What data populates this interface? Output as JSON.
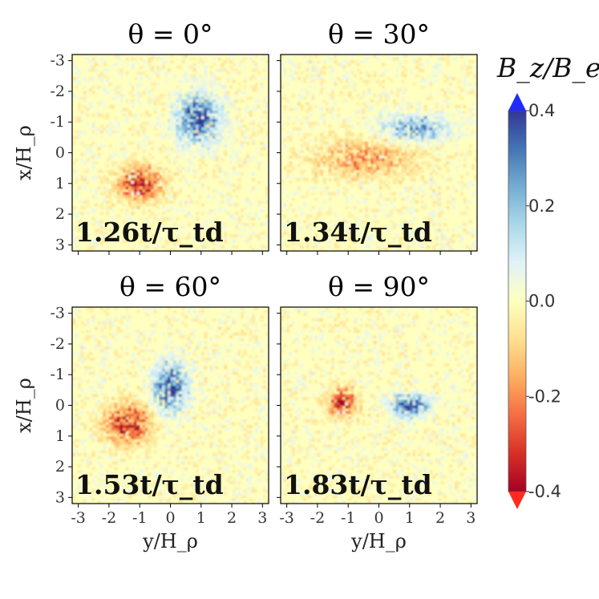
{
  "chart_data": {
    "type": "heatmap",
    "colormap": "RdYlBu",
    "colorbar": {
      "label": "B_z/B_eq",
      "vmin": -0.4,
      "vmax": 0.4,
      "ticks": [
        "0.4",
        "0.2",
        "0.0",
        "-0.2",
        "-0.4"
      ],
      "tick_values": [
        0.4,
        0.2,
        0.0,
        -0.2,
        -0.4
      ],
      "extend": "both"
    },
    "x_axis": {
      "label": "y/H_ρ",
      "range": [
        -3.2,
        3.2
      ],
      "ticks": [
        "-3",
        "-2",
        "-1",
        "0",
        "1",
        "2",
        "3"
      ],
      "tick_values": [
        -3,
        -2,
        -1,
        0,
        1,
        2,
        3
      ]
    },
    "y_axis": {
      "label": "x/H_ρ",
      "range": [
        -3.2,
        3.2
      ],
      "inverted": true,
      "ticks": [
        "-3",
        "-2",
        "-1",
        "0",
        "1",
        "2",
        "3"
      ],
      "tick_values": [
        -3,
        -2,
        -1,
        0,
        1,
        2,
        3
      ]
    },
    "panels": [
      {
        "title": "θ = 0°",
        "theta": 0,
        "time_label": "1.26t/τ_td",
        "time": 1.26,
        "features": [
          {
            "sign": "positive",
            "center": [
              0.9,
              -1.1
            ],
            "extent": [
              0.8,
              0.9
            ],
            "peak": 0.4
          },
          {
            "sign": "negative",
            "center": [
              -1.0,
              1.0
            ],
            "extent": [
              0.8,
              0.6
            ],
            "peak": -0.4
          }
        ]
      },
      {
        "title": "θ = 30°",
        "theta": 30,
        "time_label": "1.34t/τ_td",
        "time": 1.34,
        "features": [
          {
            "sign": "positive",
            "center": [
              1.2,
              -0.8
            ],
            "extent": [
              1.3,
              0.5
            ],
            "peak": 0.25
          },
          {
            "sign": "negative",
            "center": [
              -0.5,
              0.2
            ],
            "extent": [
              1.8,
              0.7
            ],
            "peak": -0.2
          }
        ]
      },
      {
        "title": "θ = 60°",
        "theta": 60,
        "time_label": "1.53t/τ_td",
        "time": 1.53,
        "features": [
          {
            "sign": "positive",
            "center": [
              0.0,
              -0.6
            ],
            "extent": [
              0.6,
              0.9
            ],
            "peak": 0.4
          },
          {
            "sign": "negative",
            "center": [
              -1.4,
              0.6
            ],
            "extent": [
              0.8,
              0.7
            ],
            "peak": -0.4
          }
        ]
      },
      {
        "title": "θ = 90°",
        "theta": 90,
        "time_label": "1.83t/τ_td",
        "time": 1.83,
        "features": [
          {
            "sign": "positive",
            "center": [
              1.0,
              0.0
            ],
            "extent": [
              0.7,
              0.4
            ],
            "peak": 0.4
          },
          {
            "sign": "negative",
            "center": [
              -1.2,
              -0.1
            ],
            "extent": [
              0.5,
              0.5
            ],
            "peak": -0.4
          }
        ]
      }
    ]
  }
}
